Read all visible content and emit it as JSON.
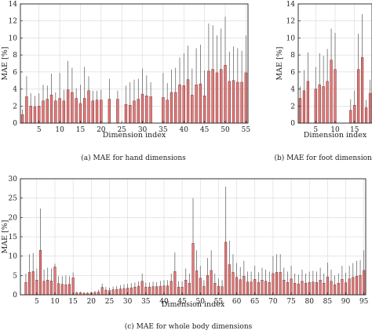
{
  "chart_data": [
    {
      "id": "a",
      "type": "bar",
      "caption": "(a) MAE for hand dimensions",
      "xlabel": "Dimension index",
      "ylabel": "MAE [%]",
      "ylim": [
        0,
        14
      ],
      "xlim": [
        0.5,
        55.5
      ],
      "yticks": [
        0,
        2,
        4,
        6,
        8,
        10,
        12,
        14
      ],
      "xticks": [
        5,
        10,
        15,
        20,
        25,
        30,
        35,
        40,
        45,
        50,
        55
      ],
      "grid": true,
      "x": [
        1,
        2,
        3,
        4,
        5,
        6,
        7,
        8,
        9,
        10,
        11,
        12,
        13,
        14,
        15,
        16,
        17,
        18,
        19,
        20,
        21,
        22,
        23,
        24,
        25,
        26,
        27,
        28,
        29,
        30,
        31,
        32,
        33,
        34,
        35,
        36,
        37,
        38,
        39,
        40,
        41,
        42,
        43,
        44,
        45,
        46,
        47,
        48,
        49,
        50,
        51,
        52,
        53,
        54,
        55
      ],
      "values": [
        1.0,
        3.1,
        2.0,
        1.9,
        2.0,
        2.6,
        2.8,
        3.3,
        2.6,
        2.9,
        2.6,
        3.9,
        3.6,
        2.9,
        2.3,
        2.9,
        3.8,
        2.6,
        2.7,
        2.7,
        0,
        2.8,
        0,
        2.8,
        0,
        2.2,
        2.1,
        2.6,
        2.8,
        3.4,
        3.2,
        3.1,
        0,
        0,
        3.0,
        2.7,
        3.6,
        3.6,
        4.5,
        4.4,
        5.1,
        3.3,
        4.5,
        4.6,
        3.2,
        6.1,
        6.3,
        5.9,
        6.3,
        6.8,
        4.9,
        5.0,
        4.8,
        4.8,
        5.9
      ],
      "errors": [
        1.6,
        5.5,
        3.5,
        3.2,
        3.5,
        4.5,
        4.4,
        5.8,
        3.6,
        5.9,
        3.9,
        7.3,
        6.5,
        4.1,
        4.5,
        6.6,
        5.5,
        3.8,
        3.8,
        3.9,
        0,
        5.2,
        0,
        3.8,
        0,
        4.4,
        4.8,
        5.1,
        5.2,
        6.4,
        5.6,
        4.8,
        0,
        0,
        5.9,
        4.7,
        6.3,
        6.5,
        7.7,
        8.2,
        9.1,
        6.4,
        8.8,
        9.2,
        6.2,
        11.7,
        11.5,
        10.3,
        11.1,
        12.5,
        8.4,
        9.0,
        8.8,
        8.5,
        10.3
      ]
    },
    {
      "id": "b",
      "type": "bar",
      "caption": "(b) MAE for foot dimensions",
      "xlabel": "Dimension index",
      "ylabel": "MAE [%]",
      "ylim": [
        0,
        14
      ],
      "xlim": [
        0.5,
        19.5
      ],
      "yticks": [
        0,
        2,
        4,
        6,
        8,
        10,
        12,
        14
      ],
      "xticks": [
        5,
        10,
        15
      ],
      "grid": true,
      "x": [
        1,
        2,
        3,
        4,
        5,
        6,
        7,
        8,
        9,
        10,
        11,
        12,
        13,
        14,
        15,
        16,
        17,
        18,
        19
      ],
      "values": [
        2.9,
        3.8,
        4.9,
        0,
        4.0,
        4.5,
        4.3,
        4.9,
        7.4,
        6.3,
        0,
        0,
        0,
        1.5,
        2.1,
        6.3,
        7.7,
        1.8,
        3.5
      ],
      "errors": [
        4.3,
        6.2,
        8.3,
        0,
        6.6,
        8.2,
        7.9,
        8.7,
        11.1,
        10.6,
        0,
        0,
        0,
        2.8,
        3.8,
        10.5,
        12.8,
        2.7,
        5.1
      ]
    },
    {
      "id": "c",
      "type": "bar",
      "caption": "(c) MAE for whole body dimensions",
      "xlabel": "Dimension index",
      "ylabel": "MAE [%]",
      "ylim": [
        0,
        30
      ],
      "xlim": [
        0.5,
        95.5
      ],
      "yticks": [
        0,
        5,
        10,
        15,
        20,
        25,
        30
      ],
      "xticks": [
        5,
        10,
        15,
        20,
        25,
        30,
        35,
        40,
        45,
        50,
        55,
        60,
        65,
        70,
        75,
        80,
        85,
        90,
        95
      ],
      "grid": true,
      "x": [
        1,
        2,
        3,
        4,
        5,
        6,
        7,
        8,
        9,
        10,
        11,
        12,
        13,
        14,
        15,
        16,
        17,
        18,
        19,
        20,
        21,
        22,
        23,
        24,
        25,
        26,
        27,
        28,
        29,
        30,
        31,
        32,
        33,
        34,
        35,
        36,
        37,
        38,
        39,
        40,
        41,
        42,
        43,
        44,
        45,
        46,
        47,
        48,
        49,
        50,
        51,
        52,
        53,
        54,
        55,
        56,
        57,
        58,
        59,
        60,
        61,
        62,
        63,
        64,
        65,
        66,
        67,
        68,
        69,
        70,
        71,
        72,
        73,
        74,
        75,
        76,
        77,
        78,
        79,
        80,
        81,
        82,
        83,
        84,
        85,
        86,
        87,
        88,
        89,
        90,
        91,
        92,
        93,
        94,
        95
      ],
      "values": [
        0,
        3.2,
        5.8,
        6.0,
        3.8,
        11.5,
        3.5,
        3.8,
        3.6,
        7.2,
        2.9,
        2.7,
        2.6,
        2.7,
        4.4,
        0.5,
        0.5,
        0.4,
        0.4,
        0.5,
        0.6,
        0.7,
        1.9,
        1.2,
        1.1,
        1.3,
        1.4,
        1.5,
        1.6,
        1.7,
        1.8,
        2.0,
        2.2,
        3.5,
        2.0,
        2.0,
        2.1,
        2.1,
        2.2,
        2.3,
        2.3,
        3.5,
        6.0,
        2.0,
        2.0,
        3.8,
        3.0,
        13.3,
        6.2,
        4.3,
        2.2,
        5.0,
        6.3,
        3.0,
        2.2,
        2.1,
        13.6,
        7.8,
        5.8,
        4.5,
        3.9,
        4.8,
        3.3,
        3.3,
        4.0,
        3.2,
        3.8,
        3.5,
        3.2,
        5.5,
        5.8,
        5.8,
        3.8,
        3.2,
        4.1,
        3.0,
        2.8,
        3.5,
        3.0,
        3.2,
        3.3,
        3.2,
        3.8,
        3.0,
        4.6,
        3.5,
        2.6,
        3.0,
        4.0,
        3.1,
        4.1,
        4.5,
        4.8,
        5.0,
        6.3
      ],
      "errors": [
        0,
        5.5,
        10.5,
        10.8,
        6.8,
        22.3,
        6.5,
        7.0,
        6.8,
        8.0,
        4.8,
        4.8,
        5.0,
        4.8,
        5.8,
        0.8,
        0.8,
        0.7,
        0.7,
        0.8,
        1.0,
        1.3,
        2.9,
        2.0,
        1.8,
        2.1,
        2.3,
        2.5,
        2.7,
        2.8,
        3.0,
        3.2,
        3.5,
        5.5,
        3.2,
        3.2,
        3.4,
        3.3,
        3.6,
        3.8,
        3.8,
        5.5,
        11.0,
        3.5,
        3.5,
        6.8,
        5.5,
        25.0,
        11.5,
        7.5,
        3.8,
        9.5,
        11.5,
        5.5,
        4.2,
        3.8,
        28.0,
        14.0,
        10.5,
        8.2,
        7.2,
        8.8,
        6.0,
        6.0,
        7.5,
        5.8,
        7.0,
        6.5,
        6.0,
        10.0,
        10.5,
        10.5,
        7.0,
        6.0,
        7.5,
        5.5,
        5.2,
        6.5,
        5.5,
        6.0,
        6.2,
        6.0,
        7.0,
        5.5,
        8.3,
        6.5,
        5.0,
        5.5,
        7.5,
        5.7,
        7.5,
        8.2,
        8.8,
        9.0,
        11.5
      ]
    }
  ]
}
